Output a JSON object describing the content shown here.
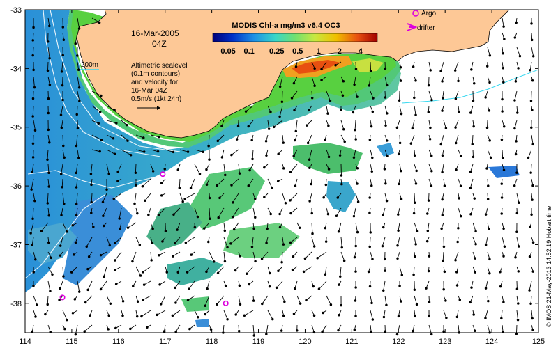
{
  "title": "MODIS Chl-a mg/m3 v6.4 OC3",
  "date": "16-Mar-2005",
  "time": "04Z",
  "depth_label": "200m",
  "annotation_lines": [
    "Altimetric sealevel",
    "(0.1m contours)",
    "and velocity for",
    "16-Mar 04Z",
    "0.5m/s (1kt 24h)"
  ],
  "legend": {
    "argo": "Argo",
    "drifter": "drifter"
  },
  "colorbar": {
    "ticks": [
      "0.05",
      "0.1",
      "0.25",
      "0.5",
      "1",
      "2",
      "4"
    ]
  },
  "credit": "© IMOS 21-May-2013 14:52:19 Hobart time",
  "axes": {
    "x_ticks": [
      "114",
      "115",
      "116",
      "117",
      "118",
      "119",
      "120",
      "121",
      "122",
      "123",
      "124",
      "125"
    ],
    "y_ticks": [
      "-33",
      "-34",
      "-35",
      "-36",
      "-37",
      "-38"
    ],
    "lon_range": [
      114,
      125
    ],
    "lat_range": [
      -38.5,
      -33
    ]
  },
  "colors": {
    "land": "#fdc896",
    "argo": "#dd00dd",
    "drifter": "#dd00dd",
    "coast_low": "#2a6fd6",
    "coast_high": "#e05010"
  },
  "argo_floats": [
    {
      "lon": 116.95,
      "lat": -35.8
    },
    {
      "lon": 114.8,
      "lat": -37.9
    },
    {
      "lon": 118.3,
      "lat": -38.0
    }
  ]
}
